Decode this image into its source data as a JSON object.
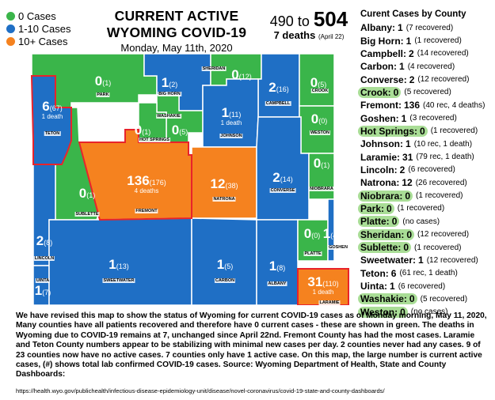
{
  "legend": {
    "items": [
      {
        "label": "0 Cases",
        "color": "#3ab54a"
      },
      {
        "label": "1-10 Cases",
        "color": "#1f6fc5"
      },
      {
        "label": "10+ Cases",
        "color": "#f5821f"
      }
    ]
  },
  "header": {
    "title_line1": "CURRENT ACTIVE",
    "title_line2": "WYOMING COVID-19",
    "subtitle": "Monday, May 11th, 2020"
  },
  "summary": {
    "previous_cases": "490",
    "to_word": "to",
    "current_cases": "504",
    "deaths": "7 deaths",
    "deaths_date": "(April 22)"
  },
  "county_list": {
    "heading": "Curent Cases by County",
    "rows": [
      {
        "name": "Albany:",
        "cases": "1",
        "extra": "(7 recovered)",
        "zero": false
      },
      {
        "name": "Big Horn:",
        "cases": "1",
        "extra": "(1 recovered)",
        "zero": false
      },
      {
        "name": "Campbell:",
        "cases": "2",
        "extra": "(14 recovered)",
        "zero": false
      },
      {
        "name": "Carbon:",
        "cases": "1",
        "extra": "(4 recovered)",
        "zero": false
      },
      {
        "name": "Converse:",
        "cases": "2",
        "extra": "(12 recovered)",
        "zero": false
      },
      {
        "name": "Crook:",
        "cases": "0",
        "extra": "(5 recovered)",
        "zero": true
      },
      {
        "name": "Fremont:",
        "cases": "136",
        "extra": "(40 rec, 4 deaths)",
        "zero": false
      },
      {
        "name": "Goshen:",
        "cases": "1",
        "extra": "(3 recovered)",
        "zero": false
      },
      {
        "name": "Hot Springs:",
        "cases": "0",
        "extra": "(1 recovered)",
        "zero": true
      },
      {
        "name": "Johnson:",
        "cases": "1",
        "extra": "(10 rec, 1 death)",
        "zero": false
      },
      {
        "name": "Laramie:",
        "cases": "31",
        "extra": "(79 rec, 1 death)",
        "zero": false
      },
      {
        "name": "Lincoln:",
        "cases": "2",
        "extra": "(6 recovered)",
        "zero": false
      },
      {
        "name": "Natrona:",
        "cases": "12",
        "extra": "(26 recovered)",
        "zero": false
      },
      {
        "name": "Niobrara:",
        "cases": "0",
        "extra": "(1 recovered)",
        "zero": true
      },
      {
        "name": "Park:",
        "cases": "0",
        "extra": "(1 recovered)",
        "zero": true
      },
      {
        "name": "Platte:",
        "cases": "0",
        "extra": "(no cases)",
        "zero": true
      },
      {
        "name": "Sheridan:",
        "cases": "0",
        "extra": "(12 recovered)",
        "zero": true
      },
      {
        "name": "Sublette:",
        "cases": "0",
        "extra": "(1 recovered)",
        "zero": true
      },
      {
        "name": "Sweetwater:",
        "cases": "1",
        "extra": "(12 recovered)",
        "zero": false
      },
      {
        "name": "Teton:",
        "cases": "6",
        "extra": "(61 rec, 1 death)",
        "zero": false
      },
      {
        "name": "Uinta:",
        "cases": "1",
        "extra": "(6 recovered)",
        "zero": false
      },
      {
        "name": "Washakie:",
        "cases": "0",
        "extra": "(5 recovered)",
        "zero": true
      },
      {
        "name": "Weston:",
        "cases": "0",
        "extra": "(no cases)",
        "zero": true
      }
    ]
  },
  "map": {
    "colors": {
      "zero": "#3ab54a",
      "low": "#1f6fc5",
      "high": "#f5821f",
      "outline": "#e8232a",
      "border": "#ffffff"
    },
    "counties": [
      {
        "id": "park",
        "name": "PARK",
        "active": "0",
        "total": "(1)",
        "death": "",
        "level": "zero"
      },
      {
        "id": "bighorn",
        "name": "BIG HORN",
        "active": "1",
        "total": "(2)",
        "death": "",
        "level": "low"
      },
      {
        "id": "sheridan",
        "name": "SHERIDAN",
        "active": "0",
        "total": "(12)",
        "death": "",
        "level": "zero"
      },
      {
        "id": "campbell",
        "name": "CAMPBELL",
        "active": "2",
        "total": "(16)",
        "death": "",
        "level": "low"
      },
      {
        "id": "crook",
        "name": "CROOK",
        "active": "0",
        "total": "(5)",
        "death": "",
        "level": "zero"
      },
      {
        "id": "teton",
        "name": "TETON",
        "active": "6",
        "total": "(67)",
        "death": "1 death",
        "level": "low"
      },
      {
        "id": "washakie",
        "name": "WASHAKIE",
        "active": "0",
        "total": "(5)",
        "death": "",
        "level": "zero"
      },
      {
        "id": "hotsprings",
        "name": "HOT SPRINGS",
        "active": "0",
        "total": "(1)",
        "death": "",
        "level": "zero"
      },
      {
        "id": "johnson",
        "name": "JOHNSON",
        "active": "1",
        "total": "(11)",
        "death": "1 death",
        "level": "low"
      },
      {
        "id": "weston",
        "name": "WESTON",
        "active": "0",
        "total": "(0)",
        "death": "",
        "level": "zero"
      },
      {
        "id": "sublette",
        "name": "SUBLETTE",
        "active": "0",
        "total": "(1)",
        "death": "",
        "level": "zero"
      },
      {
        "id": "fremont",
        "name": "FREMONT",
        "active": "136",
        "total": "(176)",
        "death": "4 deaths",
        "level": "high"
      },
      {
        "id": "natrona",
        "name": "NATRONA",
        "active": "12",
        "total": "(38)",
        "death": "",
        "level": "high"
      },
      {
        "id": "converse",
        "name": "CONVERSE",
        "active": "2",
        "total": "(14)",
        "death": "",
        "level": "low"
      },
      {
        "id": "niobrara",
        "name": "NIOBRARA",
        "active": "0",
        "total": "(1)",
        "death": "",
        "level": "zero"
      },
      {
        "id": "lincoln",
        "name": "LINCOLN",
        "active": "2",
        "total": "(8)",
        "death": "",
        "level": "low"
      },
      {
        "id": "uinta",
        "name": "UINTA",
        "active": "1",
        "total": "(7)",
        "death": "",
        "level": "low"
      },
      {
        "id": "sweetwater",
        "name": "SWEETWATER",
        "active": "1",
        "total": "(13)",
        "death": "",
        "level": "low"
      },
      {
        "id": "carbon",
        "name": "CARBON",
        "active": "1",
        "total": "(5)",
        "death": "",
        "level": "low"
      },
      {
        "id": "albany",
        "name": "ALBANY",
        "active": "1",
        "total": "(8)",
        "death": "",
        "level": "low"
      },
      {
        "id": "platte",
        "name": "PLATTE",
        "active": "0",
        "total": "(0)",
        "death": "",
        "level": "zero"
      },
      {
        "id": "goshen",
        "name": "GOSHEN",
        "active": "1",
        "total": "(4)",
        "death": "",
        "level": "low"
      },
      {
        "id": "laramie",
        "name": "LARAMIE",
        "active": "31",
        "total": "(110)",
        "death": "1 death",
        "level": "high"
      }
    ]
  },
  "footer": {
    "description": "We have revised this map to show the status of Wyoming for current COVID-19 cases as of Monday morning, May 11, 2020, Many counties have all patients recovered and therefore have 0 current cases - these are shown in green. The deaths in Wyoming due to COVID-19 remains at 7, unchanged since April 22nd. Fremont County has had the most cases. Laramie and Teton County numbers appear to be stabilizing with minimal new cases per day. 2 counties never had any cases. 9 of 23 counties now have no active cases. 7 counties only have 1 active case. On this map, the large number is current active cases, (#) shows total lab confirmed COVID-19 cases. Source: Wyoming Department of Health, State and County Dashboards:",
    "url": "https://health.wyo.gov/publichealth/infectious-disease-epidemiology-unit/disease/novel-coronavirus/covid-19-state-and-county-dashboards/"
  }
}
